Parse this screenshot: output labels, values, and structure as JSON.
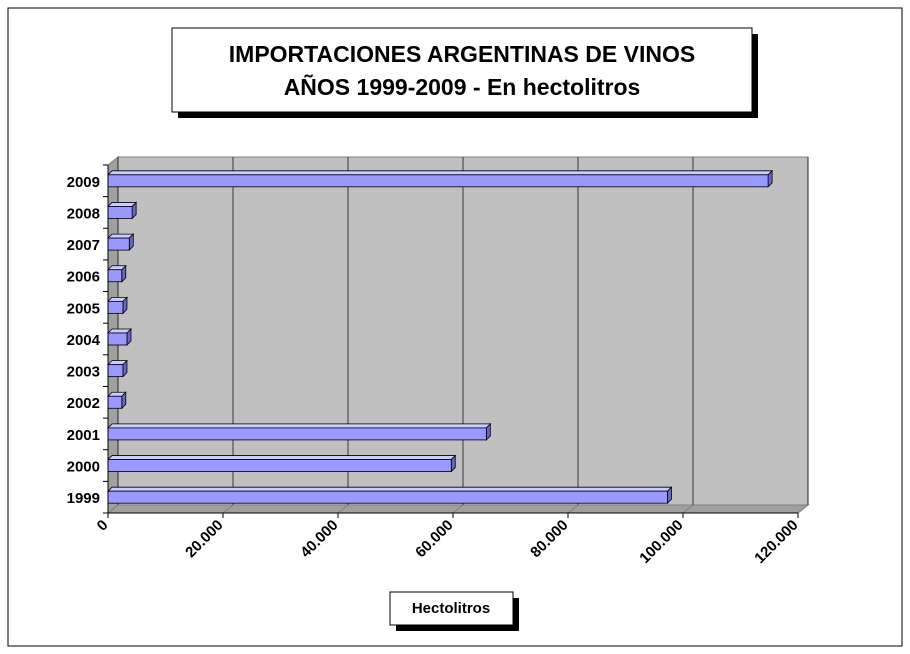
{
  "chart_data": {
    "type": "bar",
    "orientation": "horizontal",
    "title": "IMPORTACIONES ARGENTINAS DE VINOS",
    "subtitle": "AÑOS 1999-2009 - En hectolitros",
    "x_label": "Hectolitros",
    "categories": [
      "1999",
      "2000",
      "2001",
      "2002",
      "2003",
      "2004",
      "2005",
      "2006",
      "2007",
      "2008",
      "2009"
    ],
    "values": [
      97300,
      59700,
      65800,
      2400,
      2600,
      3300,
      2600,
      2400,
      3700,
      4200,
      114800
    ],
    "color": "#9999ff",
    "xlim": [
      0,
      120000
    ],
    "xticks": [
      0,
      {
        "value": 20000,
        "label": "20.000"
      },
      {
        "value": 40000,
        "label": "40.000"
      },
      {
        "value": 60000,
        "label": "60.000"
      },
      {
        "value": 80000,
        "label": "80.000"
      },
      {
        "value": 100000,
        "label": "100.000"
      },
      {
        "value": 120000,
        "label": "120.000"
      }
    ],
    "grid": true
  }
}
